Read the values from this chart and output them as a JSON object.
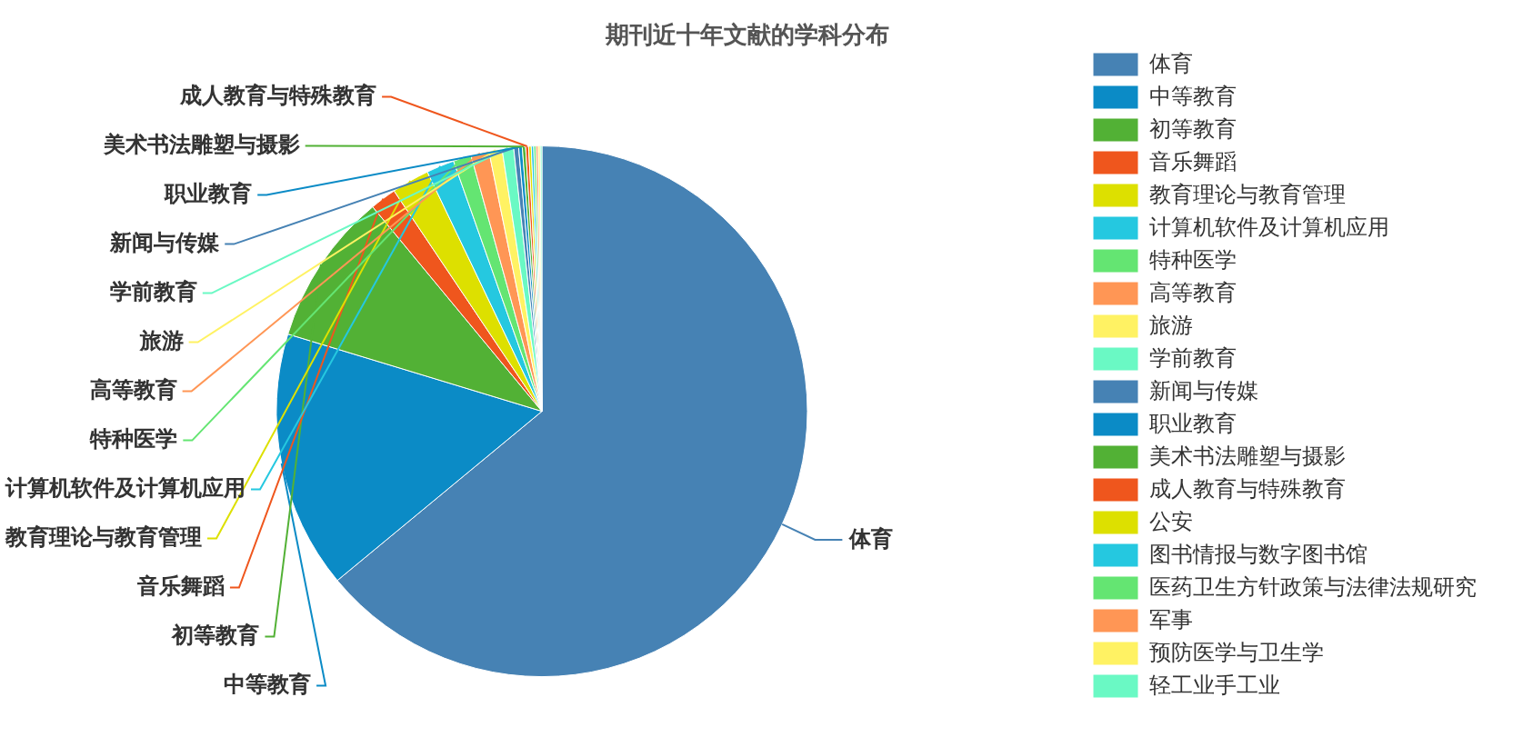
{
  "chart_data": {
    "type": "pie",
    "title": "期刊近十年文献的学科分布",
    "categories": [
      "体育",
      "中等教育",
      "初等教育",
      "音乐舞蹈",
      "教育理论与教育管理",
      "计算机软件及计算机应用",
      "特种医学",
      "高等教育",
      "旅游",
      "学前教育",
      "新闻与传媒",
      "职业教育",
      "美术书法雕塑与摄影",
      "成人教育与特殊教育",
      "公安",
      "图书情报与数字图书馆",
      "医药卫生方针政策与法律法规研究",
      "军事",
      "预防医学与卫生学",
      "轻工业手工业"
    ],
    "values": [
      64,
      15.7,
      9.3,
      1.6,
      2.3,
      1.7,
      1.1,
      1.1,
      0.8,
      0.7,
      0.3,
      0.22,
      0.2,
      0.18,
      0.16,
      0.15,
      0.14,
      0.13,
      0.12,
      0.1
    ],
    "colors": [
      "#4682b4",
      "#0b8bc6",
      "#52b135",
      "#ef561d",
      "#dde000",
      "#25c8e0",
      "#64e572",
      "#ff9655",
      "#fff263",
      "#6af9c4",
      "#4682b4",
      "#0b8bc6",
      "#52b135",
      "#ef561d",
      "#dde000",
      "#25c8e0",
      "#64e572",
      "#ff9655",
      "#fff263",
      "#6af9c4"
    ],
    "legend": "right"
  }
}
